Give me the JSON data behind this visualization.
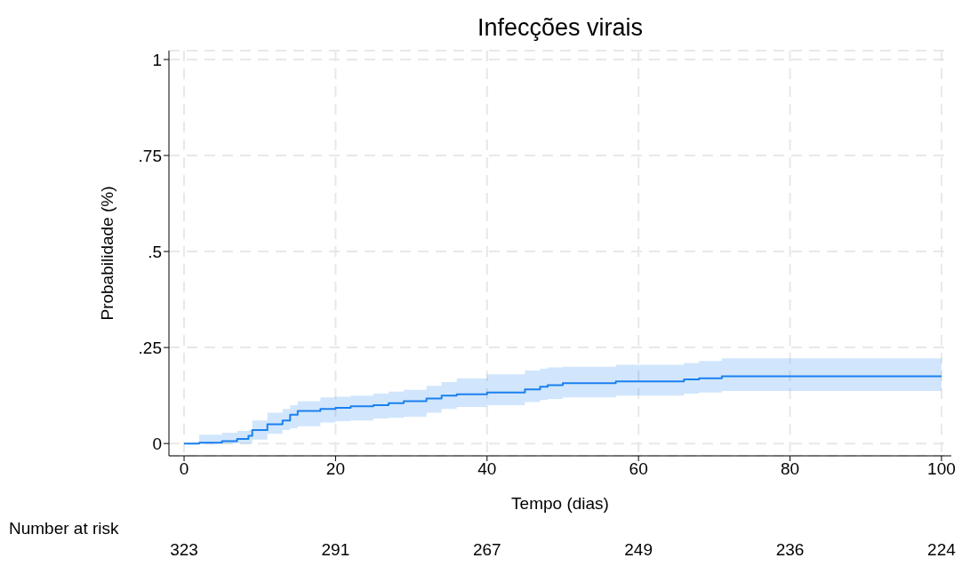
{
  "chart_data": {
    "type": "step",
    "title": "Infecções virais",
    "xlabel": "Tempo (dias)",
    "ylabel": "Probabilidade (%)",
    "x": [
      0,
      2,
      5,
      7,
      8.5,
      9,
      11,
      13,
      14,
      15,
      18,
      20,
      22,
      25,
      27,
      29,
      32,
      34,
      36,
      40,
      45,
      47,
      48,
      50,
      57,
      66,
      68,
      71,
      100
    ],
    "series": [
      {
        "color": "#1a80f0",
        "values": [
          0,
          0.002,
          0.006,
          0.012,
          0.02,
          0.035,
          0.05,
          0.06,
          0.075,
          0.085,
          0.09,
          0.093,
          0.097,
          0.1,
          0.105,
          0.11,
          0.117,
          0.125,
          0.128,
          0.133,
          0.141,
          0.148,
          0.152,
          0.157,
          0.162,
          0.167,
          0.17,
          0.175,
          0.175
        ],
        "lower": [
          0,
          0,
          0,
          0,
          0,
          0.01,
          0.025,
          0.035,
          0.04,
          0.045,
          0.055,
          0.058,
          0.06,
          0.065,
          0.067,
          0.07,
          0.08,
          0.09,
          0.095,
          0.1,
          0.108,
          0.113,
          0.116,
          0.12,
          0.125,
          0.13,
          0.133,
          0.137,
          0.137
        ],
        "upper": [
          0,
          0.023,
          0.028,
          0.033,
          0.035,
          0.06,
          0.08,
          0.09,
          0.1,
          0.11,
          0.12,
          0.122,
          0.125,
          0.13,
          0.135,
          0.14,
          0.15,
          0.16,
          0.17,
          0.18,
          0.19,
          0.195,
          0.198,
          0.2,
          0.205,
          0.21,
          0.215,
          0.222,
          0.222
        ]
      }
    ],
    "xlim": [
      -2,
      101.3
    ],
    "ylim": [
      -0.032,
      1.023
    ],
    "xticks": [
      0,
      20,
      40,
      60,
      80,
      100
    ],
    "yticks": [
      0,
      {
        "value": 0.25,
        "label": ".25"
      },
      {
        "value": 0.5,
        "label": ".5"
      },
      {
        "value": 0.75,
        "label": ".75"
      },
      1
    ],
    "grid": true,
    "line_style": "solid",
    "marker": "none",
    "legend": false,
    "annotations": [
      "Number at risk",
      "323",
      "291",
      "267",
      "249",
      "236",
      "224"
    ]
  }
}
